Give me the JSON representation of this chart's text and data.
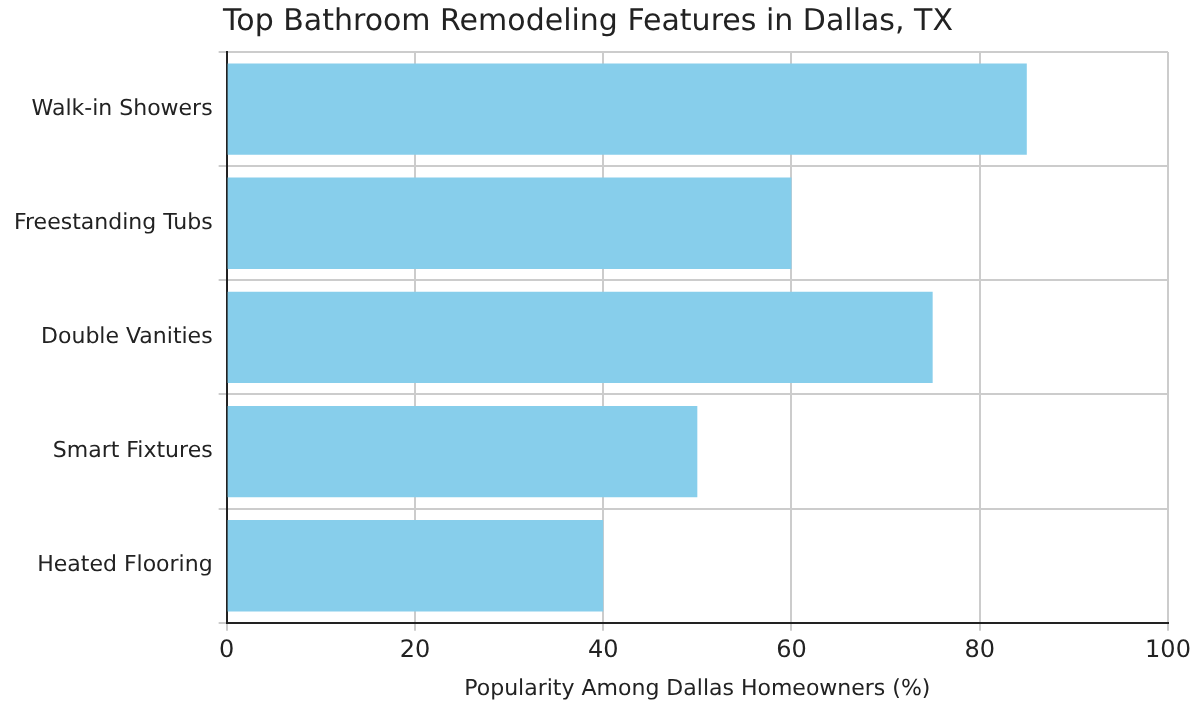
{
  "chart_data": {
    "type": "bar",
    "orientation": "horizontal",
    "title": "Top Bathroom Remodeling Features in Dallas, TX",
    "xlabel": "Popularity Among Dallas Homeowners (%)",
    "categories": [
      "Walk-in Showers",
      "Freestanding Tubs",
      "Double Vanities",
      "Smart Fixtures",
      "Heated Flooring"
    ],
    "values": [
      85,
      60,
      75,
      50,
      40
    ],
    "color": "#87ceeb",
    "xlim": [
      0,
      100
    ],
    "xticks": [
      0,
      20,
      40,
      60,
      80,
      100
    ],
    "grid": true,
    "legend": false
  }
}
